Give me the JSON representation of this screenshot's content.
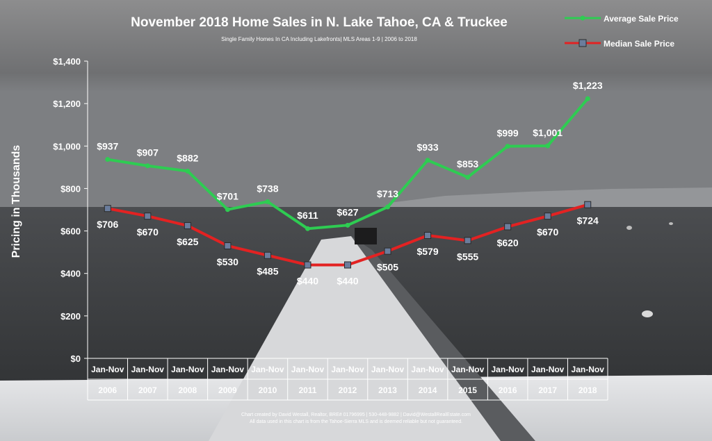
{
  "title": "November 2018 Home Sales in N. Lake Tahoe, CA & Truckee",
  "subtitle": "Single Family Homes In CA Including Lakefronts| MLS Areas 1-9 | 2006 to 2018",
  "footer": {
    "line1": "Chart created by David Westall, Realtor, BRE# 01796995 | 530-448-9882 | David@WestallRealEstate.com",
    "line2": "All data used in this chart is from the Tahoe-Sierra MLS and is deemed reliable but not guaranteed."
  },
  "colors": {
    "average": "#2ecc52",
    "median": "#e32222",
    "median_marker": "#6b7d9c"
  },
  "chart_data": {
    "type": "line",
    "title": "November 2018 Home Sales in N. Lake Tahoe, CA & Truckee",
    "subtitle": "Single Family Homes In CA Including Lakefronts| MLS Areas 1-9 | 2006 to 2018",
    "ylabel": "Pricing in Thousands",
    "xlabel": "",
    "ylim": [
      0,
      1400
    ],
    "yticks": [
      "$0",
      "$200",
      "$400",
      "$600",
      "$800",
      "$1,000",
      "$1,200",
      "$1,400"
    ],
    "ytick_values": [
      0,
      200,
      400,
      600,
      800,
      1000,
      1200,
      1400
    ],
    "period_label": "Jan-Nov",
    "categories": [
      "2006",
      "2007",
      "2008",
      "2009",
      "2010",
      "2011",
      "2012",
      "2013",
      "2014",
      "2015",
      "2016",
      "2017",
      "2018"
    ],
    "legend_position": "top-right",
    "grid": false,
    "series": [
      {
        "name": "Average Sale Price",
        "values": [
          937,
          907,
          882,
          701,
          738,
          611,
          627,
          713,
          933,
          853,
          999,
          1001,
          1223
        ],
        "labels": [
          "$937",
          "$907",
          "$882",
          "$701",
          "$738",
          "$611",
          "$627",
          "$713",
          "$933",
          "$853",
          "$999",
          "$1,001",
          "$1,223"
        ]
      },
      {
        "name": "Median Sale Price",
        "values": [
          706,
          670,
          625,
          530,
          485,
          440,
          440,
          505,
          579,
          555,
          620,
          670,
          724
        ],
        "labels": [
          "$706",
          "$670",
          "$625",
          "$530",
          "$485",
          "$440",
          "$440",
          "$505",
          "$579",
          "$555",
          "$620",
          "$670",
          "$724"
        ]
      }
    ]
  }
}
